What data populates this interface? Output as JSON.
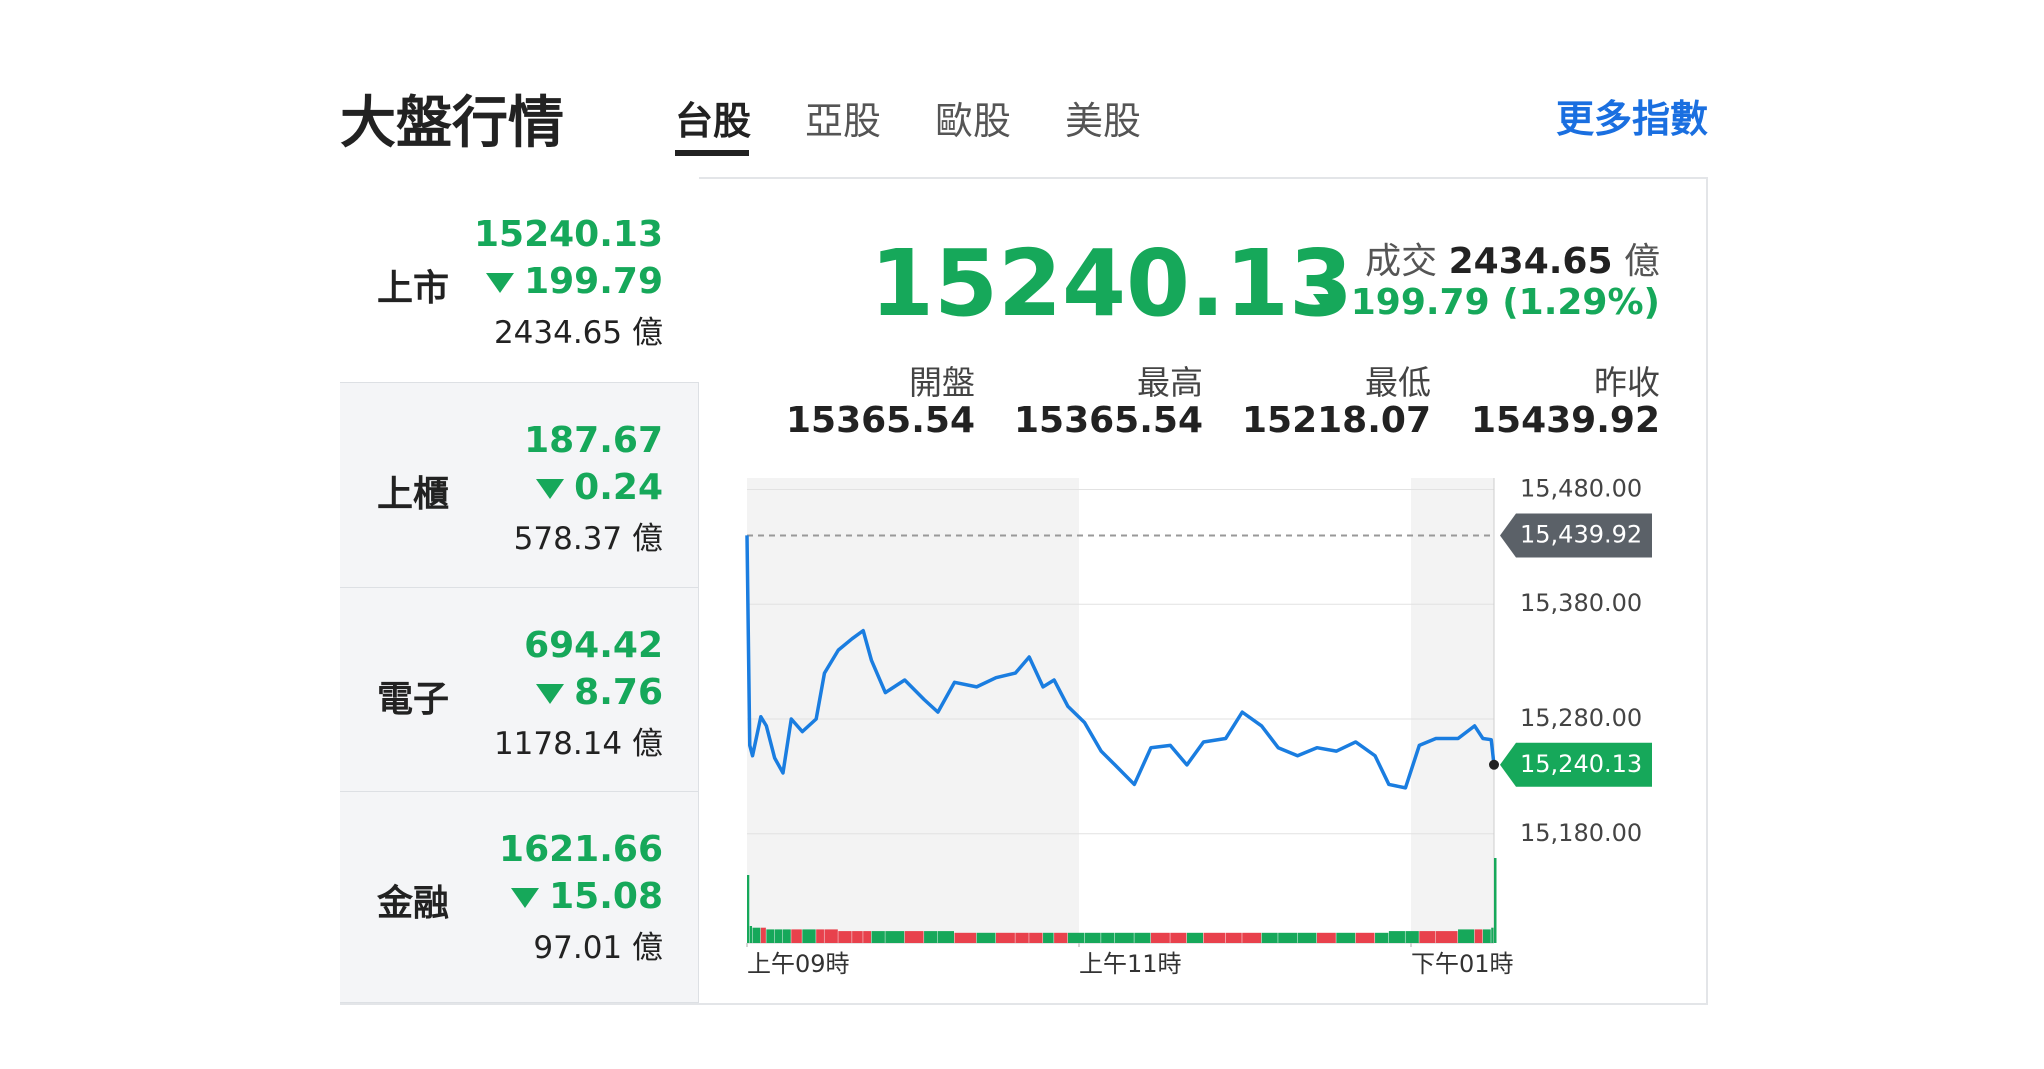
{
  "header": {
    "title": "大盤行情",
    "tabs": [
      "台股",
      "亞股",
      "歐股",
      "美股"
    ],
    "more": "更多指數"
  },
  "indices": [
    {
      "name": "上市",
      "value": "15240.13",
      "change": "199.79",
      "volume": "2434.65",
      "unit": "億"
    },
    {
      "name": "上櫃",
      "value": "187.67",
      "change": "0.24",
      "volume": "578.37",
      "unit": "億"
    },
    {
      "name": "電子",
      "value": "694.42",
      "change": "8.76",
      "volume": "1178.14",
      "unit": "億"
    },
    {
      "name": "金融",
      "value": "1621.66",
      "change": "15.08",
      "volume": "97.01",
      "unit": "億"
    }
  ],
  "main": {
    "value": "15240.13",
    "volume_label": "成交",
    "volume": "2434.65",
    "unit": "億",
    "change": "199.79 (1.29%)"
  },
  "stats": [
    {
      "label": "開盤",
      "value": "15365.54"
    },
    {
      "label": "最高",
      "value": "15365.54"
    },
    {
      "label": "最低",
      "value": "15218.07"
    },
    {
      "label": "昨收",
      "value": "15439.92"
    }
  ],
  "chart_data": {
    "type": "line",
    "color": "#1a7de0",
    "x": [
      0,
      1,
      2,
      5,
      7,
      10,
      13,
      16,
      20,
      25,
      28,
      33,
      38,
      42,
      45,
      50,
      57,
      64,
      69,
      75,
      83,
      90,
      97,
      102,
      107,
      111,
      116,
      122,
      128,
      133,
      140,
      146,
      153,
      159,
      165,
      173,
      179,
      186,
      192,
      199,
      206,
      213,
      220,
      227,
      232,
      238,
      243,
      249,
      257,
      263,
      266,
      269,
      270
    ],
    "values": [
      15440,
      15257,
      15248,
      15282,
      15274,
      15246,
      15233,
      15280,
      15269,
      15280,
      15320,
      15340,
      15350,
      15357,
      15331,
      15303,
      15314,
      15297,
      15286,
      15312,
      15308,
      15316,
      15320,
      15334,
      15308,
      15314,
      15291,
      15277,
      15252,
      15240,
      15223,
      15255,
      15257,
      15240,
      15260,
      15263,
      15286,
      15274,
      15255,
      15248,
      15255,
      15252,
      15260,
      15248,
      15223,
      15220,
      15257,
      15263,
      15263,
      15274,
      15263,
      15262,
      15240
    ],
    "volume": [
      40,
      10,
      9,
      9,
      8,
      8,
      8,
      8,
      8,
      8,
      8,
      7,
      7,
      7,
      7,
      7,
      7,
      7,
      7,
      6,
      6,
      6,
      6,
      6,
      6,
      6,
      6,
      6,
      6,
      6,
      6,
      6,
      6,
      6,
      6,
      6,
      6,
      6,
      6,
      6,
      6,
      6,
      6,
      6,
      7,
      7,
      7,
      7,
      8,
      8,
      8,
      9,
      50
    ],
    "xlim": [
      0,
      270
    ],
    "xticks": [
      {
        "value": 0,
        "label": "上午09時"
      },
      {
        "value": 120,
        "label": "上午11時"
      },
      {
        "value": 240,
        "label": "下午01時"
      }
    ],
    "ylim": [
      15165,
      15490
    ],
    "yticks": [
      {
        "value": 15480,
        "label": "15,480.00"
      },
      {
        "value": 15380,
        "label": "15,380.00"
      },
      {
        "value": 15280,
        "label": "15,280.00"
      },
      {
        "value": 15180,
        "label": "15,180.00"
      }
    ],
    "reference": {
      "value": 15439.92,
      "label": "15,439.92"
    },
    "last": {
      "value": 15240.13,
      "label": "15,240.13"
    }
  }
}
